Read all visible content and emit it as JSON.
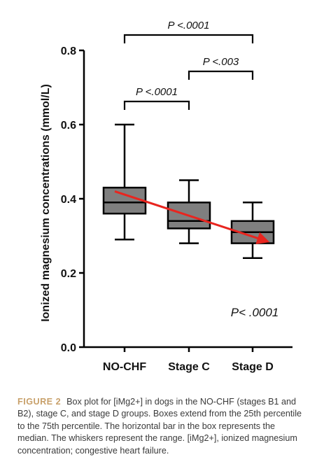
{
  "chart_data": {
    "type": "box",
    "ylabel": "Ionized magnesium concentrations (mmol/L)",
    "ylim": [
      0,
      0.8
    ],
    "yticks": [
      "0.0",
      "0.2",
      "0.4",
      "0.6",
      "0.8"
    ],
    "grid": false,
    "categories": [
      "NO-CHF",
      "Stage C",
      "Stage D"
    ],
    "boxes": [
      {
        "category": "NO-CHF",
        "min": 0.29,
        "q1": 0.36,
        "median": 0.39,
        "q3": 0.43,
        "max": 0.6
      },
      {
        "category": "Stage C",
        "min": 0.28,
        "q1": 0.32,
        "median": 0.34,
        "q3": 0.39,
        "max": 0.45
      },
      {
        "category": "Stage D",
        "min": 0.24,
        "q1": 0.28,
        "median": 0.31,
        "q3": 0.34,
        "max": 0.39
      }
    ],
    "comparisons": [
      {
        "from": "NO-CHF",
        "to": "Stage D",
        "label": "P <.0001"
      },
      {
        "from": "Stage C",
        "to": "Stage D",
        "label": "P <.003"
      },
      {
        "from": "NO-CHF",
        "to": "Stage C",
        "label": "P <.0001"
      }
    ],
    "overall_p": "P< .0001",
    "trend_arrow": {
      "from_value": 0.42,
      "to_value": 0.28,
      "color": "#e8251f"
    },
    "colors": {
      "box_fill": "#7f7f7f",
      "stroke": "#000000"
    }
  },
  "caption": {
    "figure_label": "FIGURE 2",
    "text": "Box plot for [iMg2+] in dogs in the NO-CHF (stages B1 and B2), stage C, and stage D groups. Boxes extend from the 25th percentile to the 75th percentile. The horizontal bar in the box represents the median. The whiskers represent the range. [iMg2+], ionized magnesium concentration; congestive heart failure."
  }
}
